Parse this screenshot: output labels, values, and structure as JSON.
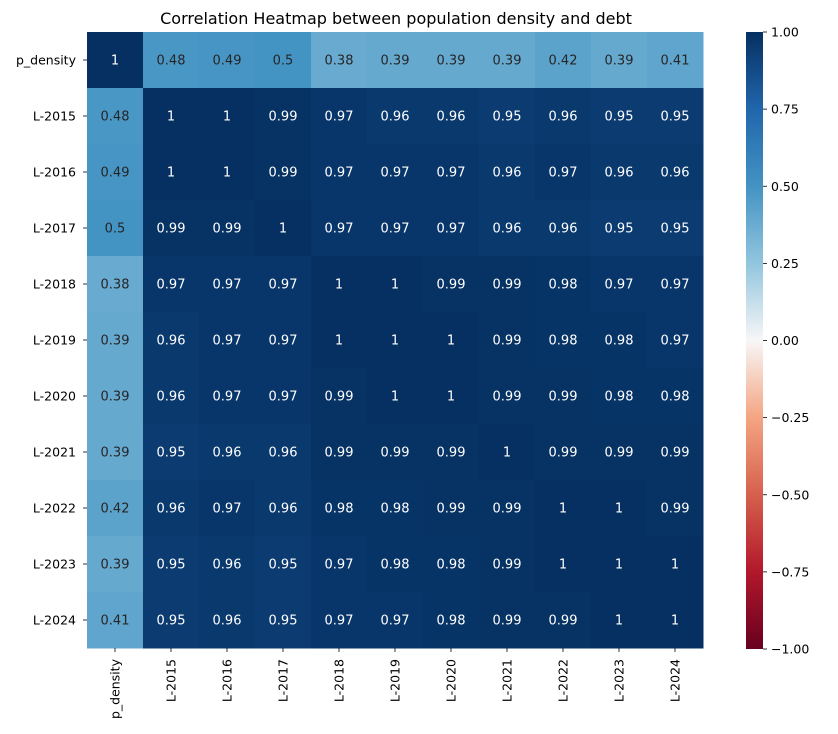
{
  "chart_data": {
    "type": "heatmap",
    "title": "Correlation Heatmap between population density and debt",
    "rows": [
      "p_density",
      "L-2015",
      "L-2016",
      "L-2017",
      "L-2018",
      "L-2019",
      "L-2020",
      "L-2021",
      "L-2022",
      "L-2023",
      "L-2024"
    ],
    "columns": [
      "p_density",
      "L-2015",
      "L-2016",
      "L-2017",
      "L-2018",
      "L-2019",
      "L-2020",
      "L-2021",
      "L-2022",
      "L-2023",
      "L-2024"
    ],
    "values": [
      [
        1,
        0.48,
        0.49,
        0.5,
        0.38,
        0.39,
        0.39,
        0.39,
        0.42,
        0.39,
        0.41
      ],
      [
        0.48,
        1,
        1,
        0.99,
        0.97,
        0.96,
        0.96,
        0.95,
        0.96,
        0.95,
        0.95
      ],
      [
        0.49,
        1,
        1,
        0.99,
        0.97,
        0.97,
        0.97,
        0.96,
        0.97,
        0.96,
        0.96
      ],
      [
        0.5,
        0.99,
        0.99,
        1,
        0.97,
        0.97,
        0.97,
        0.96,
        0.96,
        0.95,
        0.95
      ],
      [
        0.38,
        0.97,
        0.97,
        0.97,
        1,
        1,
        0.99,
        0.99,
        0.98,
        0.97,
        0.97
      ],
      [
        0.39,
        0.96,
        0.97,
        0.97,
        1,
        1,
        1,
        0.99,
        0.98,
        0.98,
        0.97
      ],
      [
        0.39,
        0.96,
        0.97,
        0.97,
        0.99,
        1,
        1,
        0.99,
        0.99,
        0.98,
        0.98
      ],
      [
        0.39,
        0.95,
        0.96,
        0.96,
        0.99,
        0.99,
        0.99,
        1,
        0.99,
        0.99,
        0.99
      ],
      [
        0.42,
        0.96,
        0.97,
        0.96,
        0.98,
        0.98,
        0.99,
        0.99,
        1,
        1,
        0.99
      ],
      [
        0.39,
        0.95,
        0.96,
        0.95,
        0.97,
        0.98,
        0.98,
        0.99,
        1,
        1,
        1
      ],
      [
        0.41,
        0.95,
        0.96,
        0.95,
        0.97,
        0.97,
        0.98,
        0.99,
        0.99,
        1,
        1
      ]
    ],
    "colormap": "RdBu",
    "vmin": -1,
    "vmax": 1,
    "colorbar_ticks": [
      "1.00",
      "0.75",
      "0.50",
      "0.25",
      "0.00",
      "−0.25",
      "−0.50",
      "−0.75",
      "−1.00"
    ],
    "annotated": true,
    "grid": false
  }
}
